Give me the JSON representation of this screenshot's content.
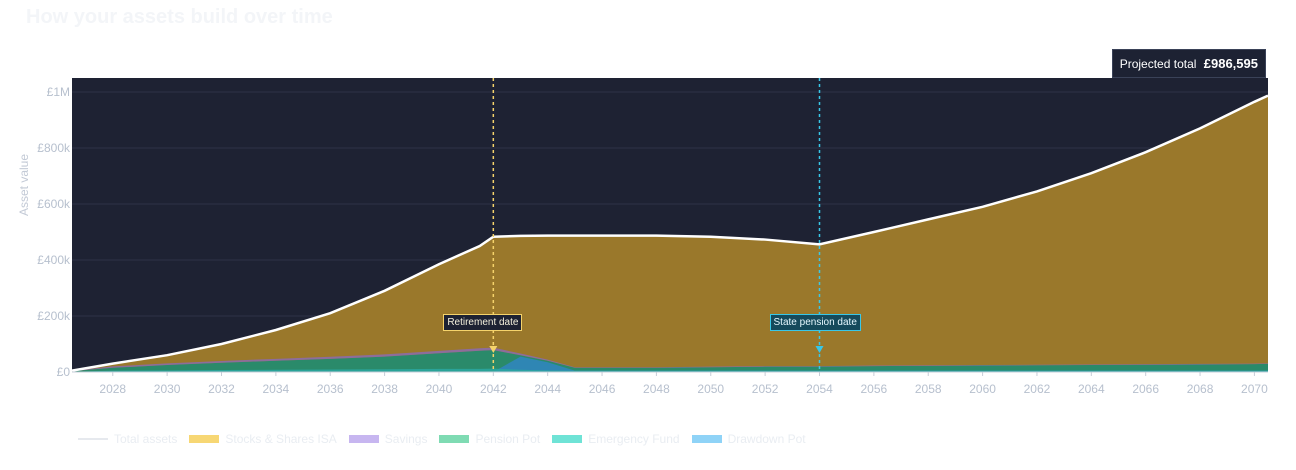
{
  "title": "How your assets build over time",
  "tooltip": {
    "label": "Projected total",
    "value": "£986,595"
  },
  "markers": {
    "retirement": {
      "label": "Retirement date",
      "year": 2042,
      "color": "#f5d36b"
    },
    "state_pension": {
      "label": "State pension date",
      "year": 2054,
      "color": "#38c7e8"
    }
  },
  "colors": {
    "plot_bg": "#1e2233",
    "stocks": "#9a782b",
    "pension": "#2a8a6a",
    "emergency": "#2aa7a0",
    "drawdown": "#2f86b4",
    "total": "#ffffff"
  },
  "legend": [
    {
      "name": "Total assets",
      "color": "#e6e9ee",
      "kind": "line"
    },
    {
      "name": "Stocks & Shares ISA",
      "color": "#f7d774",
      "kind": "area"
    },
    {
      "name": "Savings",
      "color": "#c7b6f0",
      "kind": "area"
    },
    {
      "name": "Pension Pot",
      "color": "#7fdbb3",
      "kind": "area"
    },
    {
      "name": "Emergency Fund",
      "color": "#6fe3d6",
      "kind": "area"
    },
    {
      "name": "Drawdown Pot",
      "color": "#8fd3f7",
      "kind": "area"
    }
  ],
  "chart_data": {
    "type": "area",
    "ylabel": "Asset value",
    "x_range": [
      2026.5,
      2070.5
    ],
    "ylim": [
      0,
      1050000
    ],
    "x_ticks": [
      "2028",
      "2030",
      "2032",
      "2034",
      "2036",
      "2038",
      "2040",
      "2042",
      "2044",
      "2046",
      "2048",
      "2050",
      "2052",
      "2054",
      "2056",
      "2058",
      "2060",
      "2062",
      "2064",
      "2066",
      "2068",
      "2070"
    ],
    "y_ticks": [
      {
        "value": 0,
        "label": "£0"
      },
      {
        "value": 200000,
        "label": "£200k"
      },
      {
        "value": 400000,
        "label": "£400k"
      },
      {
        "value": 600000,
        "label": "£600k"
      },
      {
        "value": 800000,
        "label": "£800k"
      },
      {
        "value": 1000000,
        "label": "£1M"
      }
    ],
    "grid": true,
    "legend_position": "bottom-left",
    "x": [
      2026.5,
      2028,
      2030,
      2032,
      2034,
      2036,
      2038,
      2040,
      2041.5,
      2042,
      2043,
      2044,
      2045,
      2046,
      2048,
      2050,
      2052,
      2054,
      2056,
      2058,
      2060,
      2062,
      2064,
      2066,
      2068,
      2070,
      2070.5
    ],
    "series": [
      {
        "name": "Total assets",
        "values": [
          5000,
          30000,
          60000,
          100000,
          150000,
          210000,
          290000,
          385000,
          450000,
          483000,
          486000,
          487000,
          487000,
          487000,
          487000,
          483000,
          473000,
          456000,
          500000,
          545000,
          590000,
          645000,
          710000,
          785000,
          870000,
          965000,
          987000
        ]
      },
      {
        "name": "Pension Pot",
        "values": [
          3000,
          15000,
          25000,
          33000,
          40000,
          47000,
          55000,
          67000,
          76000,
          78000,
          60000,
          40000,
          15000,
          15000,
          15000,
          17000,
          19000,
          19000,
          21000,
          22000,
          23000,
          24000,
          25000,
          26000,
          27000,
          28000,
          29000
        ]
      },
      {
        "name": "Savings",
        "values": [
          1000,
          5000,
          6000,
          6500,
          7000,
          7500,
          8000,
          8500,
          9000,
          9000,
          6000,
          4000,
          2000,
          2000,
          2000,
          2000,
          2000,
          2000,
          2000,
          2000,
          2000,
          2000,
          2000,
          2000,
          2000,
          2000,
          2000
        ]
      },
      {
        "name": "Emergency Fund",
        "values": [
          1000,
          5000,
          6000,
          7000,
          8000,
          9000,
          10000,
          11000,
          11000,
          12000,
          8000,
          6000,
          5000,
          5000,
          5000,
          5000,
          5000,
          5000,
          5000,
          5000,
          5000,
          5000,
          5000,
          5000,
          5000,
          5000,
          5000
        ]
      },
      {
        "name": "Drawdown Pot",
        "values": [
          0,
          0,
          0,
          0,
          0,
          0,
          0,
          0,
          0,
          0,
          55000,
          35000,
          5000,
          5000,
          5000,
          5000,
          5000,
          5000,
          5000,
          5000,
          5000,
          5000,
          5000,
          5000,
          5000,
          5000,
          5000
        ]
      }
    ]
  }
}
